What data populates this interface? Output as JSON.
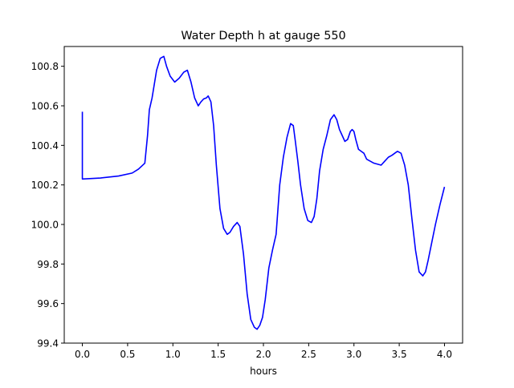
{
  "chart_data": {
    "type": "line",
    "title": "Water Depth h at gauge 550",
    "xlabel": "hours",
    "ylabel": "",
    "xlim": [
      -0.2,
      4.2
    ],
    "ylim": [
      99.4,
      100.9
    ],
    "xticks": [
      0.0,
      0.5,
      1.0,
      1.5,
      2.0,
      2.5,
      3.0,
      3.5,
      4.0
    ],
    "xtick_labels": [
      "0.0",
      "0.5",
      "1.0",
      "1.5",
      "2.0",
      "2.5",
      "3.0",
      "3.5",
      "4.0"
    ],
    "yticks": [
      99.4,
      99.6,
      99.8,
      100.0,
      100.2,
      100.4,
      100.6,
      100.8
    ],
    "ytick_labels": [
      "99.4",
      "99.6",
      "99.8",
      "100.0",
      "100.2",
      "100.4",
      "100.6",
      "100.8"
    ],
    "grid": false,
    "legend": "none",
    "series": [
      {
        "color": "#0000ff",
        "x": [
          0.0,
          0.0,
          0.2,
          0.4,
          0.55,
          0.62,
          0.69,
          0.72,
          0.74,
          0.77,
          0.82,
          0.86,
          0.9,
          0.93,
          0.97,
          1.02,
          1.07,
          1.12,
          1.16,
          1.2,
          1.24,
          1.28,
          1.31,
          1.34,
          1.37,
          1.39,
          1.42,
          1.45,
          1.48,
          1.52,
          1.56,
          1.6,
          1.63,
          1.67,
          1.71,
          1.74,
          1.78,
          1.82,
          1.86,
          1.9,
          1.93,
          1.96,
          1.99,
          2.02,
          2.06,
          2.1,
          2.14,
          2.18,
          2.22,
          2.26,
          2.3,
          2.33,
          2.35,
          2.38,
          2.41,
          2.45,
          2.49,
          2.53,
          2.56,
          2.59,
          2.62,
          2.66,
          2.7,
          2.74,
          2.78,
          2.81,
          2.84,
          2.87,
          2.9,
          2.93,
          2.96,
          2.98,
          3.0,
          3.02,
          3.05,
          3.08,
          3.11,
          3.14,
          3.18,
          3.22,
          3.26,
          3.3,
          3.34,
          3.38,
          3.42,
          3.45,
          3.48,
          3.52,
          3.56,
          3.6,
          3.64,
          3.68,
          3.72,
          3.76,
          3.79,
          3.82,
          3.86,
          3.9,
          3.95,
          4.0
        ],
        "y": [
          100.57,
          100.23,
          100.235,
          100.245,
          100.26,
          100.28,
          100.31,
          100.45,
          100.58,
          100.64,
          100.78,
          100.84,
          100.85,
          100.8,
          100.75,
          100.72,
          100.74,
          100.77,
          100.78,
          100.72,
          100.64,
          100.6,
          100.62,
          100.635,
          100.64,
          100.65,
          100.62,
          100.5,
          100.3,
          100.08,
          99.98,
          99.95,
          99.96,
          99.99,
          100.01,
          99.99,
          99.85,
          99.65,
          99.52,
          99.48,
          99.47,
          99.49,
          99.53,
          99.62,
          99.78,
          99.87,
          99.95,
          100.2,
          100.34,
          100.44,
          100.51,
          100.5,
          100.43,
          100.32,
          100.2,
          100.08,
          100.02,
          100.01,
          100.04,
          100.13,
          100.27,
          100.38,
          100.45,
          100.53,
          100.555,
          100.53,
          100.48,
          100.45,
          100.42,
          100.43,
          100.47,
          100.48,
          100.47,
          100.43,
          100.38,
          100.37,
          100.36,
          100.33,
          100.32,
          100.31,
          100.305,
          100.3,
          100.32,
          100.34,
          100.35,
          100.36,
          100.37,
          100.36,
          100.3,
          100.2,
          100.03,
          99.87,
          99.76,
          99.74,
          99.76,
          99.82,
          99.91,
          100.0,
          100.1,
          100.19
        ]
      }
    ]
  }
}
